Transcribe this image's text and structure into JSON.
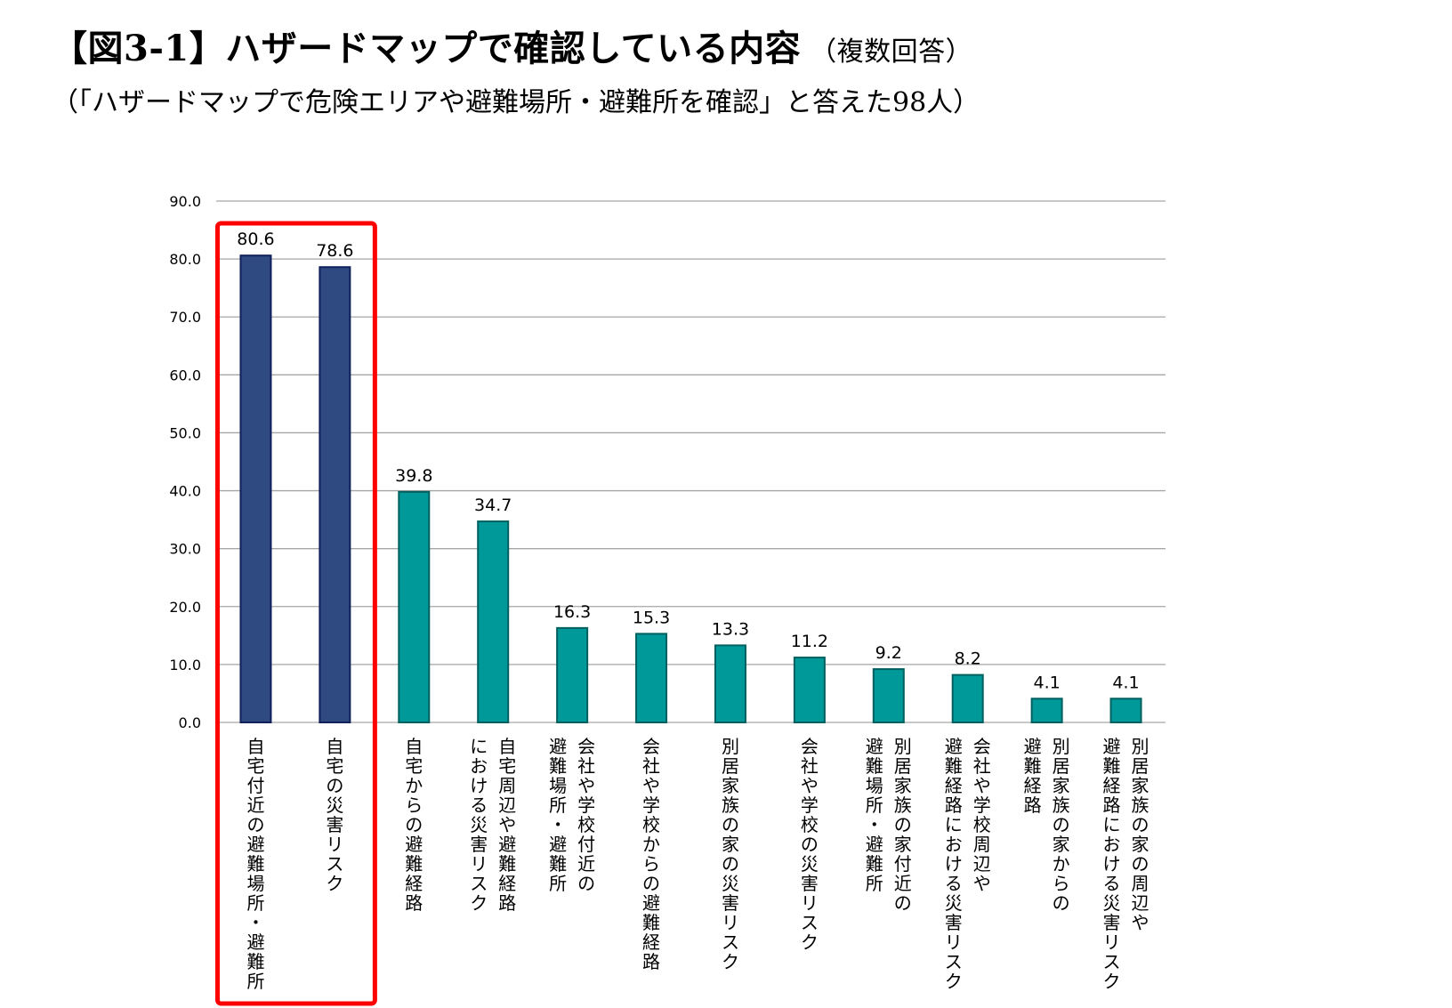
{
  "header": {
    "title": "【図3-1】ハザードマップで確認している内容",
    "title_note": "（複数回答）",
    "subtitle": "（「ハザードマップで危険エリアや避難場所・避難所を確認」と答えた98人）"
  },
  "colors": {
    "highlight_bar": "#2e4a80",
    "highlight_bar_stroke": "#10205a",
    "bar": "#009999",
    "bar_stroke": "#005f5f",
    "highlight_box": "#ff0000",
    "grid": "#a6a6a6"
  },
  "chart_data": {
    "type": "bar",
    "title": "",
    "xlabel": "",
    "ylabel": "",
    "ylim": [
      0,
      90
    ],
    "yticks": [
      "0.0",
      "10.0",
      "20.0",
      "30.0",
      "40.0",
      "50.0",
      "60.0",
      "70.0",
      "80.0",
      "90.0"
    ],
    "grid": true,
    "categories": [
      [
        "自宅付近の避難場所・避難所"
      ],
      [
        "自宅の災害リスク"
      ],
      [
        "自宅からの避難経路"
      ],
      [
        "自宅周辺や避難経路",
        "における災害リスク"
      ],
      [
        "会社や学校付近の",
        "避難場所・避難所"
      ],
      [
        "会社や学校からの避難経路"
      ],
      [
        "別居家族の家の災害リスク"
      ],
      [
        "会社や学校の災害リスク"
      ],
      [
        "別居家族の家付近の",
        "避難場所・避難所"
      ],
      [
        "会社や学校周辺や",
        "避難経路における災害リスク"
      ],
      [
        "別居家族の家からの",
        "避難経路"
      ],
      [
        "別居家族の家の周辺や",
        "避難経路における災害リスク"
      ]
    ],
    "values": [
      80.6,
      78.6,
      39.8,
      34.7,
      16.3,
      15.3,
      13.3,
      11.2,
      9.2,
      8.2,
      4.1,
      4.1
    ],
    "value_labels": [
      "80.6",
      "78.6",
      "39.8",
      "34.7",
      "16.3",
      "15.3",
      "13.3",
      "11.2",
      "9.2",
      "8.2",
      "4.1",
      "4.1"
    ],
    "highlighted": [
      0,
      1
    ]
  }
}
